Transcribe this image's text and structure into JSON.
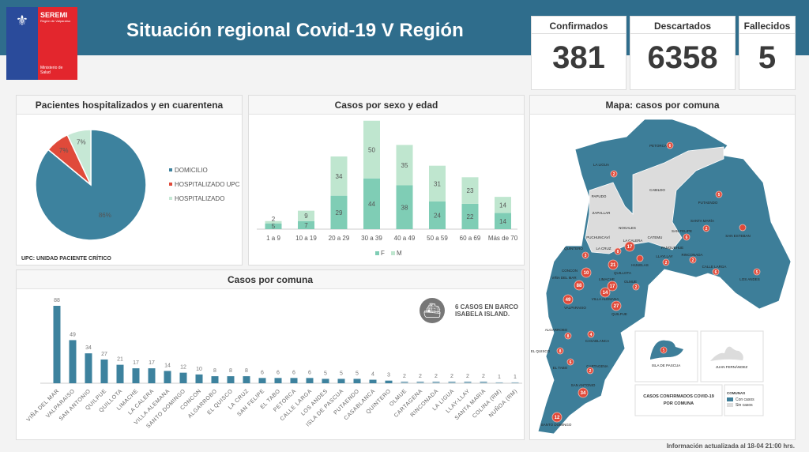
{
  "header": {
    "title": "Situación regional Covid-19 V Región",
    "logo": {
      "name": "SEREMI",
      "region": "Región de Valparaíso",
      "ministry": "Ministerio de Salud"
    }
  },
  "kpis": [
    {
      "label": "Confirmados",
      "value": "381"
    },
    {
      "label": "Descartados",
      "value": "6358"
    },
    {
      "label": "Fallecidos",
      "value": "5"
    }
  ],
  "colors": {
    "brand": "#2f6d8c",
    "teal": "#3d829e",
    "red": "#e04a3a",
    "light_green": "#c6e8d5",
    "female": "#7fcdb5",
    "male": "#bfe6cf",
    "grey": "#dcdcdc"
  },
  "chart_data": [
    {
      "type": "pie",
      "title": "Pacientes hospitalizados  y en cuarentena",
      "legend_position": "right",
      "slices": [
        {
          "name": "DOMICILIO",
          "value": 86,
          "label": "86%",
          "color": "#3d829e"
        },
        {
          "name": "HOSPITALIZADO UPC",
          "value": 7,
          "label": "7%",
          "color": "#e04a3a"
        },
        {
          "name": "HOSPITALIZADO",
          "value": 7,
          "label": "7%",
          "color": "#c6e8d5"
        }
      ],
      "note": "UPC: UNIDAD PACIENTE CRÍTICO"
    },
    {
      "type": "bar",
      "stacked": true,
      "title": "Casos por sexo y edad",
      "categories": [
        "1 a 9",
        "10 a 19",
        "20 a 29",
        "30 a 39",
        "40 a 49",
        "50 a 59",
        "60 a 69",
        "Más de 70"
      ],
      "series": [
        {
          "name": "F",
          "values": [
            5,
            7,
            29,
            44,
            38,
            24,
            22,
            14
          ],
          "color": "#7fcdb5"
        },
        {
          "name": "M",
          "values": [
            2,
            9,
            34,
            50,
            35,
            31,
            23,
            14
          ],
          "color": "#bfe6cf"
        }
      ],
      "legend_position": "bottom",
      "grid": false
    },
    {
      "type": "bar",
      "title": "Casos por comuna",
      "categories": [
        "VIÑA DEL MAR",
        "VALPARAISO",
        "SAN ANTONIO",
        "QUILPUE",
        "QUILLOTA",
        "LIMACHE",
        "LA CALERA",
        "VILLA ALEMANA",
        "SANTO DOMINGO",
        "CONCON",
        "ALGARROBO",
        "EL QUISCO",
        "LA CRUZ",
        "SAN FELIPE",
        "EL TABO",
        "PETORCA",
        "CALLE LARGA",
        "LOS ANDES",
        "ISLA DE PASCUA",
        "PUTAENDO",
        "CASABLANCA",
        "QUINTERO",
        "OLMUE",
        "CARTAGENA",
        "RINCONADA",
        "LA LIGUA",
        "LLAY-LLAY",
        "SANTA MARIA",
        "COLINA (RM)",
        "NUÑOA (RM)"
      ],
      "values": [
        88,
        49,
        34,
        27,
        21,
        17,
        17,
        14,
        12,
        10,
        8,
        8,
        8,
        6,
        6,
        6,
        6,
        5,
        5,
        5,
        4,
        3,
        2,
        2,
        2,
        2,
        2,
        2,
        1,
        1
      ],
      "color": "#3d829e",
      "grid": false,
      "annotation": "6 CASOS EN BARCO ISABELA ISLAND."
    }
  ],
  "map": {
    "title": "Mapa: casos por comuna",
    "comunas": [
      {
        "name": "PETORCA",
        "count": "6"
      },
      {
        "name": "LA LIGUA",
        "count": "2"
      },
      {
        "name": "CABILDO",
        "count": ""
      },
      {
        "name": "PAPUDO",
        "count": ""
      },
      {
        "name": "ZAPALLAR",
        "count": ""
      },
      {
        "name": "NOGALES",
        "count": ""
      },
      {
        "name": "PUCHUNCAVÍ",
        "count": ""
      },
      {
        "name": "CATEMU",
        "count": ""
      },
      {
        "name": "PUTAENDO",
        "count": "5"
      },
      {
        "name": "SANTA MARÍA",
        "count": "2"
      },
      {
        "name": "SAN FELIPE",
        "count": "6"
      },
      {
        "name": "SAN ESTEBAN",
        "count": ""
      },
      {
        "name": "LA CALERA",
        "count": "17"
      },
      {
        "name": "LA CRUZ",
        "count": "8"
      },
      {
        "name": "QUINTERO",
        "count": "3"
      },
      {
        "name": "PANQUEHUE",
        "count": ""
      },
      {
        "name": "LLAYLLAY",
        "count": "2"
      },
      {
        "name": "RINCONADA",
        "count": "2"
      },
      {
        "name": "HIJUELAS",
        "count": ""
      },
      {
        "name": "QUILLOTA",
        "count": "21"
      },
      {
        "name": "CALLE LARGA",
        "count": "6"
      },
      {
        "name": "LOS ANDES",
        "count": "5"
      },
      {
        "name": "CONCON",
        "count": "10"
      },
      {
        "name": "VIÑA DEL MAR",
        "count": "88"
      },
      {
        "name": "LIMACHE",
        "count": "17"
      },
      {
        "name": "OLMUE",
        "count": "2"
      },
      {
        "name": "VILLA ALEMANA",
        "count": "14"
      },
      {
        "name": "VALPARAISO",
        "count": "49"
      },
      {
        "name": "QUILPUE",
        "count": "27"
      },
      {
        "name": "ALGARROBO",
        "count": "8"
      },
      {
        "name": "CASABLANCA",
        "count": "4"
      },
      {
        "name": "EL QUISCO",
        "count": "8"
      },
      {
        "name": "EL TABO",
        "count": "6"
      },
      {
        "name": "CARTAGENA",
        "count": "2"
      },
      {
        "name": "SAN ANTONIO",
        "count": "34"
      },
      {
        "name": "SANTO DOMINGO",
        "count": "12"
      }
    ],
    "islands": [
      {
        "name": "ISLA DE PASCUA",
        "count": "5"
      },
      {
        "name": "JUAN FERNÁNDEZ",
        "count": ""
      }
    ],
    "caption": "CASOS CONFIRMADOS COVID-19 POR COMUNA",
    "legend": {
      "title": "COMUNAS",
      "items": [
        "Con casos",
        "Sin casos"
      ]
    }
  },
  "footer": "Información  actualizada al 18-04 21:00 hrs."
}
